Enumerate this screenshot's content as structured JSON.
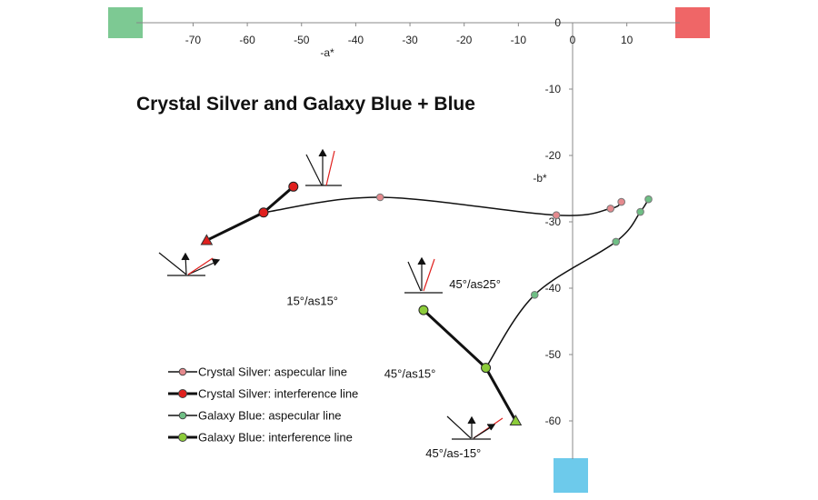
{
  "chart_data": {
    "type": "line",
    "title": "Crystal Silver and Galaxy Blue + Blue",
    "xlabel": "-a*",
    "ylabel": "-b*",
    "xlim": [
      -80,
      15
    ],
    "ylim": [
      -65,
      0
    ],
    "x_ticks": [
      -70,
      -60,
      -50,
      -40,
      -30,
      -20,
      -10,
      0,
      10
    ],
    "y_ticks": [
      0,
      -10,
      -20,
      -30,
      -40,
      -50,
      -60
    ],
    "series": [
      {
        "name": "Crystal Silver: aspecular line",
        "color": "#e58a8e",
        "marker": "circle",
        "points": [
          {
            "x": -35.5,
            "y": -26.3
          },
          {
            "x": -3,
            "y": -29
          },
          {
            "x": 7,
            "y": -28
          },
          {
            "x": 9,
            "y": -27
          }
        ]
      },
      {
        "name": "Crystal Silver: interference line",
        "color": "#e0201e",
        "marker": "circle",
        "points": [
          {
            "x": -67.5,
            "y": -32.8,
            "marker": "triangle"
          },
          {
            "x": -57,
            "y": -28.6
          },
          {
            "x": -51.5,
            "y": -24.7
          }
        ]
      },
      {
        "name": "Galaxy Blue: aspecular line",
        "color": "#6fbf85",
        "marker": "circle",
        "points": [
          {
            "x": -16,
            "y": -52
          },
          {
            "x": -7,
            "y": -41
          },
          {
            "x": 8,
            "y": -33
          },
          {
            "x": 12.5,
            "y": -28.5
          },
          {
            "x": 14,
            "y": -26.6
          }
        ]
      },
      {
        "name": "Galaxy Blue: interference line",
        "color": "#8ccc3a",
        "marker": "circle",
        "points": [
          {
            "x": -27.5,
            "y": -43.3
          },
          {
            "x": -16,
            "y": -52
          },
          {
            "x": -10.5,
            "y": -60,
            "marker": "triangle"
          }
        ]
      }
    ],
    "annotations": [
      {
        "text": "15°/as15°",
        "x": -48,
        "y": -42.5
      },
      {
        "text": "45°/as25°",
        "x": -18,
        "y": -40
      },
      {
        "text": "45°/as15°",
        "x": -30,
        "y": -53.5
      },
      {
        "text": "45°/as-15°",
        "x": -22,
        "y": -65.5
      }
    ],
    "corner_swatches": {
      "green": "#7dc993",
      "red": "#ef6667",
      "blue": "#6dcaeb"
    },
    "grid": false,
    "legend_position": "bottom-left"
  }
}
